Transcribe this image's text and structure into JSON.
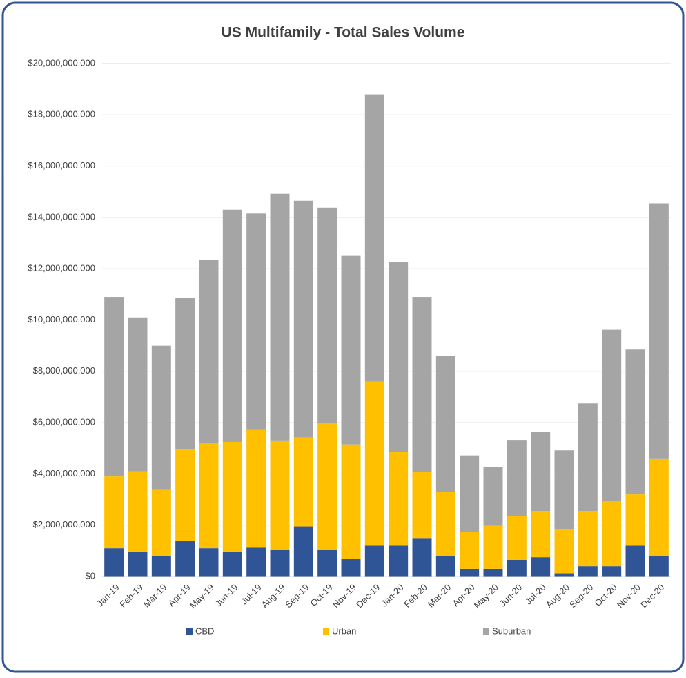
{
  "chart_data": {
    "type": "stacked-bar",
    "title": "US Multifamily - Total Sales Volume",
    "categories": [
      "Jan-19",
      "Feb-19",
      "Mar-19",
      "Apr-19",
      "May-19",
      "Jun-19",
      "Jul-19",
      "Aug-19",
      "Sep-19",
      "Oct-19",
      "Nov-19",
      "Dec-19",
      "Jan-20",
      "Feb-20",
      "Mar-20",
      "Apr-20",
      "May-20",
      "Jun-20",
      "Jul-20",
      "Aug-20",
      "Sep-20",
      "Oct-20",
      "Nov-20",
      "Dec-20"
    ],
    "series": [
      {
        "name": "CBD",
        "color": "#2f5597",
        "values": [
          1100000000,
          950000000,
          800000000,
          1400000000,
          1100000000,
          950000000,
          1150000000,
          1050000000,
          1950000000,
          1050000000,
          700000000,
          1200000000,
          1200000000,
          1500000000,
          800000000,
          300000000,
          300000000,
          650000000,
          750000000,
          120000000,
          400000000,
          400000000,
          1200000000,
          800000000
        ]
      },
      {
        "name": "Urban",
        "color": "#ffc000",
        "values": [
          2800000000,
          3150000000,
          2600000000,
          3550000000,
          4100000000,
          4300000000,
          4570000000,
          4230000000,
          3470000000,
          4950000000,
          4450000000,
          6400000000,
          3650000000,
          2580000000,
          2500000000,
          1450000000,
          1680000000,
          1700000000,
          1800000000,
          1730000000,
          2150000000,
          2550000000,
          2000000000,
          3780000000
        ]
      },
      {
        "name": "Suburban",
        "color": "#a5a5a5",
        "values": [
          7000000000,
          6000000000,
          5600000000,
          5900000000,
          7150000000,
          9050000000,
          8430000000,
          9640000000,
          9230000000,
          8380000000,
          7350000000,
          11200000000,
          7400000000,
          6820000000,
          5300000000,
          2970000000,
          2290000000,
          2950000000,
          3100000000,
          3070000000,
          4200000000,
          6670000000,
          5650000000,
          9970000000
        ]
      }
    ],
    "ylim": [
      0,
      20000000000
    ],
    "yticks": [
      {
        "value": 0,
        "label": "$0"
      },
      {
        "value": 2000000000,
        "label": "$2,000,000,000"
      },
      {
        "value": 4000000000,
        "label": "$4,000,000,000"
      },
      {
        "value": 6000000000,
        "label": "$6,000,000,000"
      },
      {
        "value": 8000000000,
        "label": "$8,000,000,000"
      },
      {
        "value": 10000000000,
        "label": "$10,000,000,000"
      },
      {
        "value": 12000000000,
        "label": "$12,000,000,000"
      },
      {
        "value": 14000000000,
        "label": "$14,000,000,000"
      },
      {
        "value": 16000000000,
        "label": "$16,000,000,000"
      },
      {
        "value": 18000000000,
        "label": "$18,000,000,000"
      },
      {
        "value": 20000000000,
        "label": "$20,000,000,000"
      }
    ],
    "grid": true,
    "legend": "bottom"
  }
}
